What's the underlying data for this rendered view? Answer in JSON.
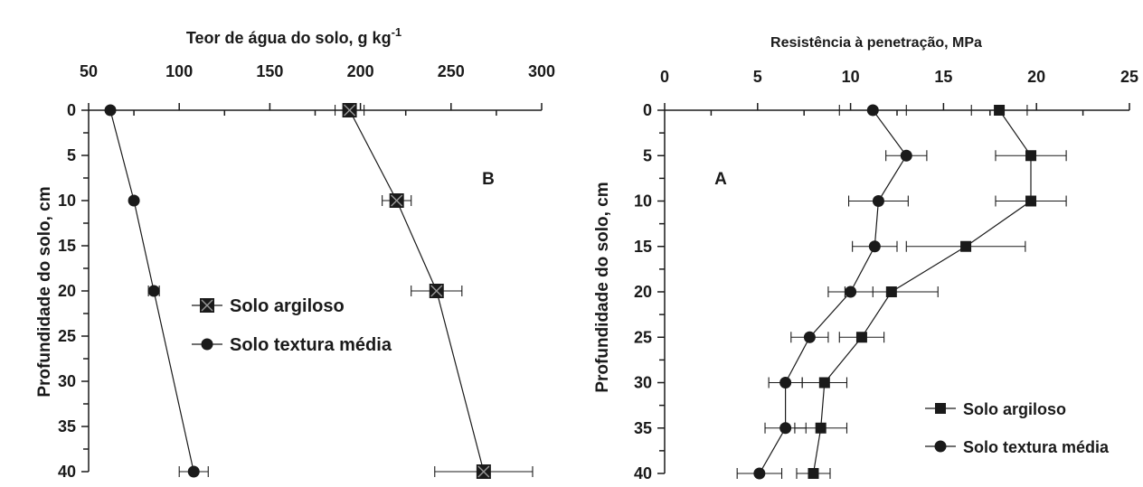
{
  "chart_data": [
    {
      "type": "line",
      "panel_label": "B",
      "title": "Teor de água do solo, g kg",
      "title_superscript": "-1",
      "ylabel": "Profundidade do solo, cm",
      "xlim": [
        50,
        300
      ],
      "ylim": [
        0,
        40
      ],
      "x_ticks": [
        "50",
        "100",
        "150",
        "200",
        "250",
        "300"
      ],
      "y_ticks": [
        "0",
        "5",
        "10",
        "15",
        "20",
        "25",
        "30",
        "35",
        "40"
      ],
      "x_axis_position": "top",
      "y_axis_inverted": true,
      "grid": false,
      "legend_position": "center",
      "series": [
        {
          "name": "Solo argiloso",
          "marker": "square-x",
          "points": [
            {
              "depth": 0,
              "value": 194,
              "err": 8
            },
            {
              "depth": 10,
              "value": 220,
              "err": 8
            },
            {
              "depth": 20,
              "value": 242,
              "err": 14
            },
            {
              "depth": 40,
              "value": 268,
              "err": 27
            }
          ]
        },
        {
          "name": "Solo textura média",
          "marker": "circle",
          "points": [
            {
              "depth": 0,
              "value": 62,
              "err": 0
            },
            {
              "depth": 10,
              "value": 75,
              "err": 0
            },
            {
              "depth": 20,
              "value": 86,
              "err": 3
            },
            {
              "depth": 40,
              "value": 108,
              "err": 8
            }
          ]
        }
      ]
    },
    {
      "type": "line",
      "panel_label": "A",
      "title": "Resistência à penetração, MPa",
      "ylabel": "Profundidade do solo, cm",
      "xlim": [
        0,
        25
      ],
      "ylim": [
        0,
        40
      ],
      "x_ticks": [
        "0",
        "5",
        "10",
        "15",
        "20",
        "25"
      ],
      "y_ticks": [
        "0",
        "5",
        "10",
        "15",
        "20",
        "25",
        "30",
        "35",
        "40"
      ],
      "x_axis_position": "top",
      "y_axis_inverted": true,
      "grid": false,
      "legend_position": "bottom-right",
      "series": [
        {
          "name": "Solo argiloso",
          "marker": "square",
          "points": [
            {
              "depth": 0,
              "value": 18.0,
              "err": 1.5
            },
            {
              "depth": 5,
              "value": 19.7,
              "err": 1.9
            },
            {
              "depth": 10,
              "value": 19.7,
              "err": 1.9
            },
            {
              "depth": 15,
              "value": 16.2,
              "err": 3.2
            },
            {
              "depth": 20,
              "value": 12.2,
              "err": 2.5
            },
            {
              "depth": 25,
              "value": 10.6,
              "err": 1.2
            },
            {
              "depth": 30,
              "value": 8.6,
              "err": 1.2
            },
            {
              "depth": 35,
              "value": 8.4,
              "err": 1.4
            },
            {
              "depth": 40,
              "value": 8.0,
              "err": 0.9
            }
          ]
        },
        {
          "name": "Solo textura média",
          "marker": "circle",
          "points": [
            {
              "depth": 0,
              "value": 11.2,
              "err": 1.8
            },
            {
              "depth": 5,
              "value": 13.0,
              "err": 1.1
            },
            {
              "depth": 10,
              "value": 11.5,
              "err": 1.6
            },
            {
              "depth": 15,
              "value": 11.3,
              "err": 1.2
            },
            {
              "depth": 20,
              "value": 10.0,
              "err": 1.2
            },
            {
              "depth": 25,
              "value": 7.8,
              "err": 1.0
            },
            {
              "depth": 30,
              "value": 6.5,
              "err": 0.9
            },
            {
              "depth": 35,
              "value": 6.5,
              "err": 1.1
            },
            {
              "depth": 40,
              "value": 5.1,
              "err": 1.2
            }
          ]
        }
      ]
    }
  ]
}
